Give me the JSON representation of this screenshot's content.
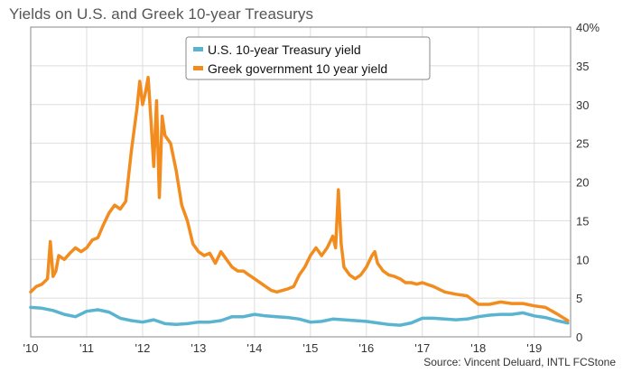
{
  "title": "Yields on U.S. and Greek 10-year Treasurys",
  "source": "Source: Vincent Deluard, INTL FCStone",
  "colors": {
    "us": "#5ab4d0",
    "greek": "#f28c1e",
    "grid": "#dddddd",
    "frame": "#888888"
  },
  "chart_data": {
    "type": "line",
    "title": "Yields on U.S. and Greek 10-year Treasurys",
    "x_tick_labels": [
      "'10",
      "'11",
      "'12",
      "'13",
      "'14",
      "'15",
      "'16",
      "'17",
      "'18",
      "'19"
    ],
    "y_tick_labels": [
      "0",
      "5",
      "10",
      "15",
      "20",
      "25",
      "30",
      "35",
      "40%"
    ],
    "xlim": [
      2010,
      2019.65
    ],
    "ylim": [
      0,
      40
    ],
    "y_axis_side": "right",
    "grid": true,
    "legend_position": "top-center",
    "series": [
      {
        "name": "U.S. 10-year Treasury yield",
        "color": "#5ab4d0",
        "x": [
          2010.0,
          2010.2,
          2010.4,
          2010.6,
          2010.8,
          2011.0,
          2011.2,
          2011.4,
          2011.6,
          2011.8,
          2012.0,
          2012.2,
          2012.4,
          2012.6,
          2012.8,
          2013.0,
          2013.2,
          2013.4,
          2013.6,
          2013.8,
          2014.0,
          2014.2,
          2014.4,
          2014.6,
          2014.8,
          2015.0,
          2015.2,
          2015.4,
          2015.6,
          2015.8,
          2016.0,
          2016.2,
          2016.4,
          2016.6,
          2016.8,
          2017.0,
          2017.2,
          2017.4,
          2017.6,
          2017.8,
          2018.0,
          2018.2,
          2018.4,
          2018.6,
          2018.8,
          2019.0,
          2019.2,
          2019.4,
          2019.6
        ],
        "y": [
          3.8,
          3.7,
          3.4,
          2.9,
          2.6,
          3.3,
          3.5,
          3.2,
          2.4,
          2.1,
          1.9,
          2.2,
          1.7,
          1.6,
          1.7,
          1.9,
          1.9,
          2.1,
          2.6,
          2.6,
          2.9,
          2.7,
          2.6,
          2.5,
          2.3,
          1.9,
          2.0,
          2.3,
          2.2,
          2.1,
          2.0,
          1.8,
          1.6,
          1.5,
          1.8,
          2.4,
          2.4,
          2.3,
          2.2,
          2.3,
          2.6,
          2.8,
          2.9,
          2.9,
          3.1,
          2.7,
          2.5,
          2.1,
          1.8
        ]
      },
      {
        "name": "Greek government 10 year yield",
        "color": "#f28c1e",
        "x": [
          2010.0,
          2010.1,
          2010.2,
          2010.3,
          2010.35,
          2010.4,
          2010.45,
          2010.5,
          2010.6,
          2010.7,
          2010.8,
          2010.9,
          2011.0,
          2011.1,
          2011.2,
          2011.3,
          2011.4,
          2011.5,
          2011.6,
          2011.7,
          2011.8,
          2011.9,
          2011.95,
          2012.0,
          2012.05,
          2012.1,
          2012.15,
          2012.2,
          2012.25,
          2012.3,
          2012.35,
          2012.4,
          2012.45,
          2012.5,
          2012.6,
          2012.7,
          2012.8,
          2012.9,
          2013.0,
          2013.1,
          2013.2,
          2013.3,
          2013.4,
          2013.5,
          2013.6,
          2013.7,
          2013.8,
          2013.9,
          2014.0,
          2014.1,
          2014.2,
          2014.3,
          2014.4,
          2014.5,
          2014.6,
          2014.7,
          2014.8,
          2014.9,
          2015.0,
          2015.1,
          2015.2,
          2015.3,
          2015.4,
          2015.45,
          2015.5,
          2015.55,
          2015.6,
          2015.7,
          2015.8,
          2015.9,
          2016.0,
          2016.1,
          2016.15,
          2016.2,
          2016.3,
          2016.4,
          2016.5,
          2016.6,
          2016.7,
          2016.8,
          2016.9,
          2017.0,
          2017.2,
          2017.4,
          2017.6,
          2017.8,
          2018.0,
          2018.2,
          2018.4,
          2018.6,
          2018.8,
          2019.0,
          2019.2,
          2019.4,
          2019.6
        ],
        "y": [
          5.8,
          6.5,
          6.8,
          7.5,
          12.3,
          7.8,
          8.5,
          10.5,
          10.0,
          10.8,
          11.5,
          11.0,
          11.5,
          12.5,
          12.8,
          14.5,
          16.0,
          17.0,
          16.5,
          17.5,
          24.0,
          29.5,
          33.0,
          30.0,
          31.5,
          33.5,
          28.0,
          22.0,
          30.5,
          18.0,
          28.5,
          26.0,
          25.5,
          25.0,
          21.5,
          17.0,
          15.0,
          12.0,
          11.0,
          10.5,
          10.8,
          9.5,
          11.0,
          10.0,
          9.0,
          8.5,
          8.5,
          8.0,
          7.5,
          7.0,
          6.5,
          6.0,
          5.8,
          6.0,
          6.2,
          6.5,
          8.0,
          9.0,
          10.5,
          11.5,
          10.5,
          11.5,
          13.0,
          11.5,
          19.0,
          12.0,
          9.0,
          8.0,
          7.5,
          8.0,
          9.0,
          10.5,
          11.0,
          9.5,
          8.5,
          8.0,
          7.8,
          7.5,
          7.0,
          7.0,
          6.8,
          7.0,
          6.5,
          5.8,
          5.5,
          5.3,
          4.2,
          4.2,
          4.5,
          4.3,
          4.3,
          4.0,
          3.8,
          3.0,
          2.1
        ]
      }
    ]
  }
}
